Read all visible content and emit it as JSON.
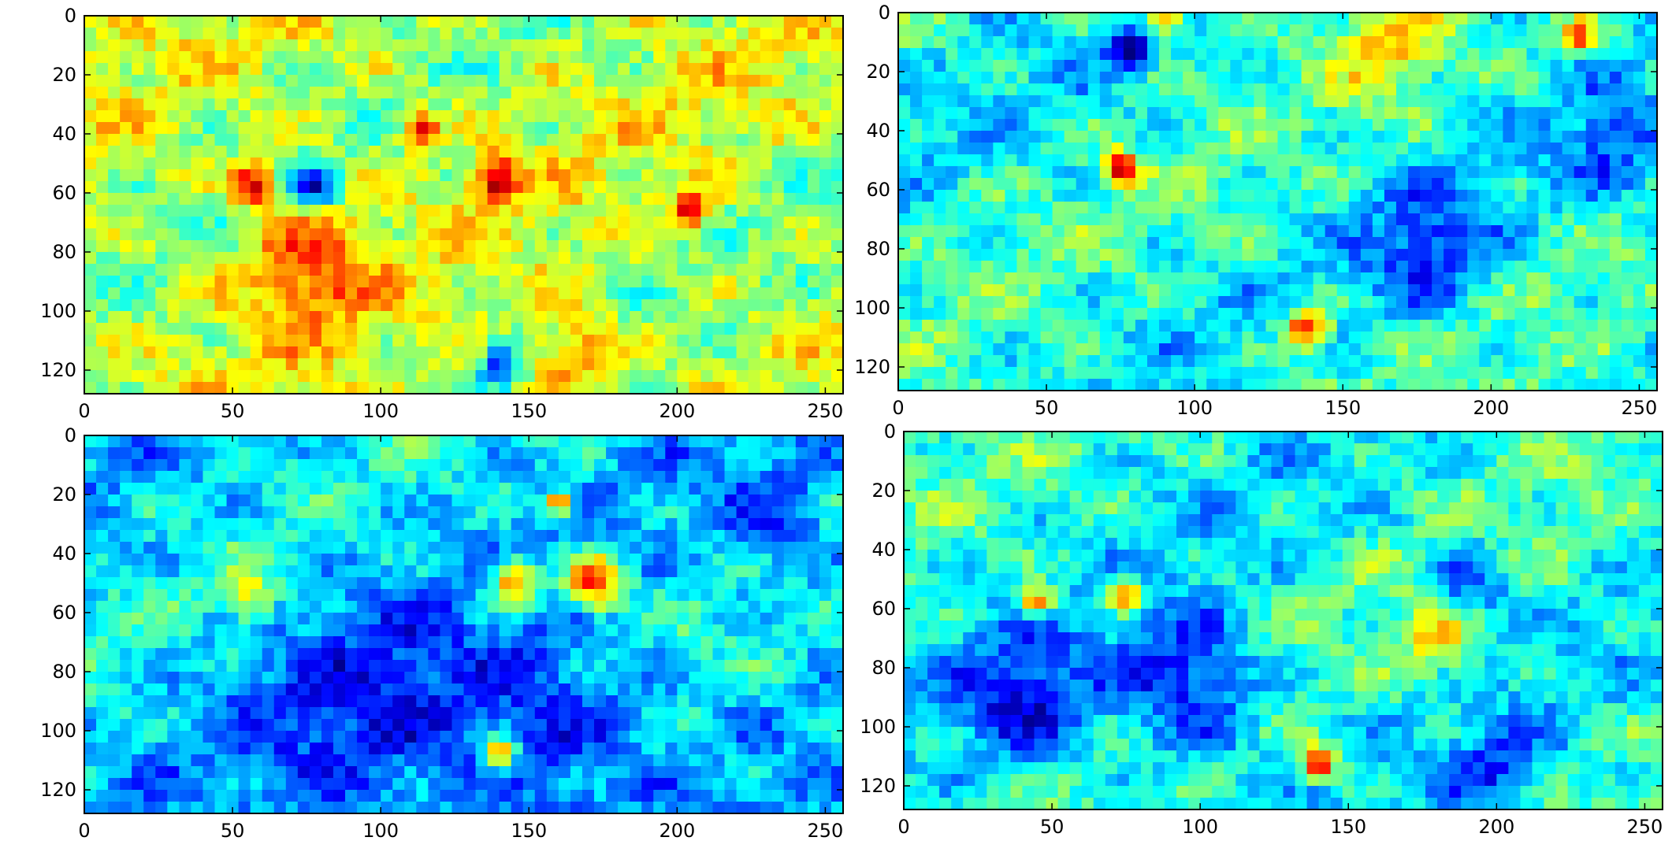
{
  "chart_data": [
    {
      "type": "heatmap",
      "title": "",
      "xlabel": "",
      "ylabel": "",
      "colormap": "jet",
      "image_shape": [
        128,
        256
      ],
      "xlim": [
        0,
        256
      ],
      "ylim": [
        128,
        0
      ],
      "x_ticks": [
        0,
        50,
        100,
        150,
        200,
        250
      ],
      "y_ticks": [
        0,
        20,
        40,
        60,
        80,
        100,
        120
      ],
      "x_tick_labels": [
        "0",
        "50",
        "100",
        "150",
        "200",
        "250"
      ],
      "y_tick_labels": [
        "0",
        "20",
        "40",
        "60",
        "80",
        "100",
        "120"
      ],
      "base_level": 0.56,
      "hotspots": [
        {
          "x": 57,
          "y": 57,
          "r": 5,
          "v": 0.42
        },
        {
          "x": 113,
          "y": 38,
          "r": 4,
          "v": 0.4
        },
        {
          "x": 138,
          "y": 55,
          "r": 5,
          "v": 0.38
        },
        {
          "x": 205,
          "y": 66,
          "r": 4,
          "v": 0.42
        },
        {
          "x": 75,
          "y": 85,
          "r": 14,
          "v": 0.26
        },
        {
          "x": 165,
          "y": 115,
          "r": 10,
          "v": 0.22
        },
        {
          "x": 78,
          "y": 58,
          "r": 5,
          "v": -0.42
        },
        {
          "x": 140,
          "y": 118,
          "r": 5,
          "v": -0.35
        }
      ]
    },
    {
      "type": "heatmap",
      "title": "",
      "xlabel": "",
      "ylabel": "",
      "colormap": "jet",
      "image_shape": [
        128,
        256
      ],
      "xlim": [
        0,
        256
      ],
      "ylim": [
        128,
        0
      ],
      "x_ticks": [
        0,
        50,
        100,
        150,
        200,
        250
      ],
      "y_ticks": [
        0,
        20,
        40,
        60,
        80,
        100,
        120
      ],
      "x_tick_labels": [
        "0",
        "50",
        "100",
        "150",
        "200",
        "250"
      ],
      "y_tick_labels": [
        "0",
        "20",
        "40",
        "60",
        "80",
        "100",
        "120"
      ],
      "base_level": 0.4,
      "hotspots": [
        {
          "x": 75,
          "y": 53,
          "r": 4,
          "v": 0.55
        },
        {
          "x": 138,
          "y": 107,
          "r": 5,
          "v": 0.52
        },
        {
          "x": 90,
          "y": 2,
          "r": 5,
          "v": 0.42
        },
        {
          "x": 230,
          "y": 8,
          "r": 4,
          "v": 0.4
        },
        {
          "x": 165,
          "y": 12,
          "r": 12,
          "v": 0.22
        },
        {
          "x": 78,
          "y": 12,
          "r": 5,
          "v": -0.34
        },
        {
          "x": 180,
          "y": 80,
          "r": 14,
          "v": -0.22
        },
        {
          "x": 240,
          "y": 45,
          "r": 12,
          "v": -0.18
        }
      ]
    },
    {
      "type": "heatmap",
      "title": "",
      "xlabel": "",
      "ylabel": "",
      "colormap": "jet",
      "image_shape": [
        128,
        256
      ],
      "xlim": [
        0,
        256
      ],
      "ylim": [
        128,
        0
      ],
      "x_ticks": [
        0,
        50,
        100,
        150,
        200,
        250
      ],
      "y_ticks": [
        0,
        20,
        40,
        60,
        80,
        100,
        120
      ],
      "x_tick_labels": [
        "0",
        "50",
        "100",
        "150",
        "200",
        "250"
      ],
      "y_tick_labels": [
        "0",
        "20",
        "40",
        "60",
        "80",
        "100",
        "120"
      ],
      "base_level": 0.34,
      "hotspots": [
        {
          "x": 160,
          "y": 23,
          "r": 3,
          "v": 0.55
        },
        {
          "x": 145,
          "y": 50,
          "r": 6,
          "v": 0.48
        },
        {
          "x": 172,
          "y": 50,
          "r": 7,
          "v": 0.5
        },
        {
          "x": 140,
          "y": 108,
          "r": 4,
          "v": 0.55
        },
        {
          "x": 55,
          "y": 55,
          "r": 6,
          "v": 0.3
        },
        {
          "x": 100,
          "y": 100,
          "r": 30,
          "v": -0.18
        },
        {
          "x": 160,
          "y": 98,
          "r": 22,
          "v": -0.2
        },
        {
          "x": 235,
          "y": 30,
          "r": 14,
          "v": -0.16
        }
      ]
    },
    {
      "type": "heatmap",
      "title": "",
      "xlabel": "",
      "ylabel": "",
      "colormap": "jet",
      "image_shape": [
        128,
        256
      ],
      "xlim": [
        0,
        256
      ],
      "ylim": [
        128,
        0
      ],
      "x_ticks": [
        0,
        50,
        100,
        150,
        200,
        250
      ],
      "y_ticks": [
        0,
        20,
        40,
        60,
        80,
        100,
        120
      ],
      "x_tick_labels": [
        "0",
        "50",
        "100",
        "150",
        "200",
        "250"
      ],
      "y_tick_labels": [
        "0",
        "20",
        "40",
        "60",
        "80",
        "100",
        "120"
      ],
      "base_level": 0.4,
      "hotspots": [
        {
          "x": 45,
          "y": 58,
          "r": 4,
          "v": 0.45
        },
        {
          "x": 75,
          "y": 55,
          "r": 4,
          "v": 0.48
        },
        {
          "x": 140,
          "y": 112,
          "r": 4,
          "v": 0.55
        },
        {
          "x": 180,
          "y": 70,
          "r": 10,
          "v": 0.22
        },
        {
          "x": 40,
          "y": 92,
          "r": 16,
          "v": -0.28
        },
        {
          "x": 95,
          "y": 85,
          "r": 18,
          "v": -0.3
        },
        {
          "x": 190,
          "y": 52,
          "r": 10,
          "v": -0.22
        },
        {
          "x": 200,
          "y": 115,
          "r": 12,
          "v": -0.18
        }
      ]
    }
  ]
}
